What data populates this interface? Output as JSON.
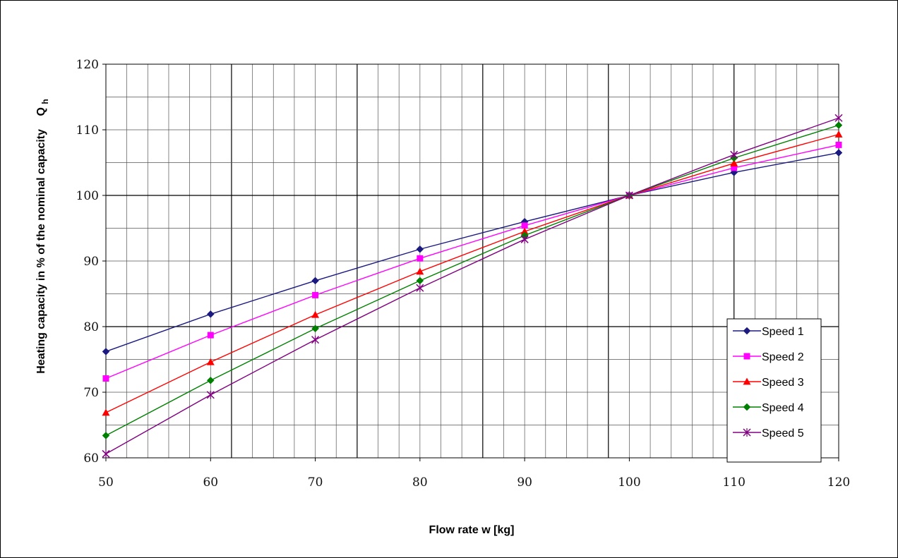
{
  "chart_data": {
    "type": "line",
    "xlabel": "Flow rate w [kg]",
    "ylabel": "Heating capacity in % of the nominal capacity",
    "ylabel_symbol": "Q",
    "ylabel_symbol_sub": "h",
    "xlim": [
      50,
      120
    ],
    "ylim": [
      60,
      120
    ],
    "x_ticks": [
      "50",
      "60",
      "70",
      "80",
      "90",
      "100",
      "110",
      "120"
    ],
    "y_ticks": [
      "60",
      "70",
      "80",
      "90",
      "100",
      "110",
      "120"
    ],
    "grid": true,
    "legend_position": "lower-right",
    "x": [
      50,
      60,
      70,
      80,
      90,
      100,
      110,
      120
    ],
    "series": [
      {
        "name": "Speed 1",
        "color": "#1a1a80",
        "marker": "diamond",
        "values": [
          76.2,
          81.9,
          87.0,
          91.8,
          96.0,
          100.0,
          103.5,
          106.5
        ]
      },
      {
        "name": "Speed 2",
        "color": "#ff00ff",
        "marker": "square",
        "values": [
          72.1,
          78.7,
          84.8,
          90.4,
          95.4,
          100.0,
          104.2,
          107.7
        ]
      },
      {
        "name": "Speed 3",
        "color": "#ff0000",
        "marker": "triangle",
        "values": [
          66.9,
          74.6,
          81.8,
          88.4,
          94.5,
          100.0,
          104.9,
          109.3
        ]
      },
      {
        "name": "Speed 4",
        "color": "#008000",
        "marker": "diamond",
        "values": [
          63.4,
          71.8,
          79.7,
          87.0,
          93.9,
          100.0,
          105.7,
          110.7
        ]
      },
      {
        "name": "Speed 5",
        "color": "#800080",
        "marker": "star",
        "values": [
          60.6,
          69.6,
          78.0,
          85.9,
          93.3,
          100.0,
          106.2,
          111.8
        ]
      }
    ]
  }
}
